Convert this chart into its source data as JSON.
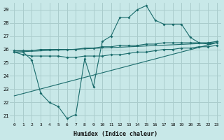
{
  "xlabel": "Humidex (Indice chaleur)",
  "bg_color": "#c8e8e8",
  "grid_color": "#aacccc",
  "line_color": "#1a6b6b",
  "xlim": [
    -0.5,
    23.5
  ],
  "ylim": [
    20.5,
    29.5
  ],
  "xticks": [
    0,
    1,
    2,
    3,
    4,
    5,
    6,
    7,
    8,
    9,
    10,
    11,
    12,
    13,
    14,
    15,
    16,
    17,
    18,
    19,
    20,
    21,
    22,
    23
  ],
  "yticks": [
    21,
    22,
    23,
    24,
    25,
    26,
    27,
    28,
    29
  ],
  "series1_x": [
    0,
    1,
    2,
    3,
    4,
    5,
    6,
    7,
    8,
    9,
    10,
    11,
    12,
    13,
    14,
    15,
    16,
    17,
    18,
    19,
    20,
    21,
    22,
    23
  ],
  "series1_y": [
    25.8,
    25.8,
    25.2,
    22.7,
    22.0,
    21.7,
    20.8,
    21.1,
    25.3,
    23.2,
    26.6,
    27.0,
    28.4,
    28.4,
    29.0,
    29.3,
    28.2,
    27.9,
    27.9,
    27.9,
    26.9,
    26.5,
    26.4,
    26.5
  ],
  "series2_x": [
    0,
    1,
    2,
    3,
    4,
    5,
    6,
    7,
    8,
    9,
    10,
    11,
    12,
    13,
    14,
    15,
    16,
    17,
    18,
    19,
    20,
    21,
    22,
    23
  ],
  "series2_y": [
    25.9,
    25.9,
    25.9,
    26.0,
    26.0,
    26.0,
    26.0,
    26.0,
    26.1,
    26.1,
    26.2,
    26.2,
    26.3,
    26.3,
    26.3,
    26.4,
    26.4,
    26.5,
    26.5,
    26.5,
    26.5,
    26.5,
    26.5,
    26.6
  ],
  "series3_x": [
    0,
    1,
    2,
    3,
    4,
    5,
    6,
    7,
    8,
    9,
    10,
    11,
    12,
    13,
    14,
    15,
    16,
    17,
    18,
    19,
    20,
    21,
    22,
    23
  ],
  "series3_y": [
    25.8,
    25.6,
    25.5,
    25.5,
    25.5,
    25.5,
    25.4,
    25.4,
    25.5,
    25.5,
    25.5,
    25.6,
    25.6,
    25.7,
    25.8,
    25.8,
    25.9,
    26.0,
    26.0,
    26.1,
    26.1,
    26.2,
    26.2,
    26.3
  ],
  "series4_x": [
    0,
    23
  ],
  "series4_y": [
    25.8,
    26.5
  ],
  "series5_x": [
    0,
    23
  ],
  "series5_y": [
    22.5,
    26.5
  ]
}
